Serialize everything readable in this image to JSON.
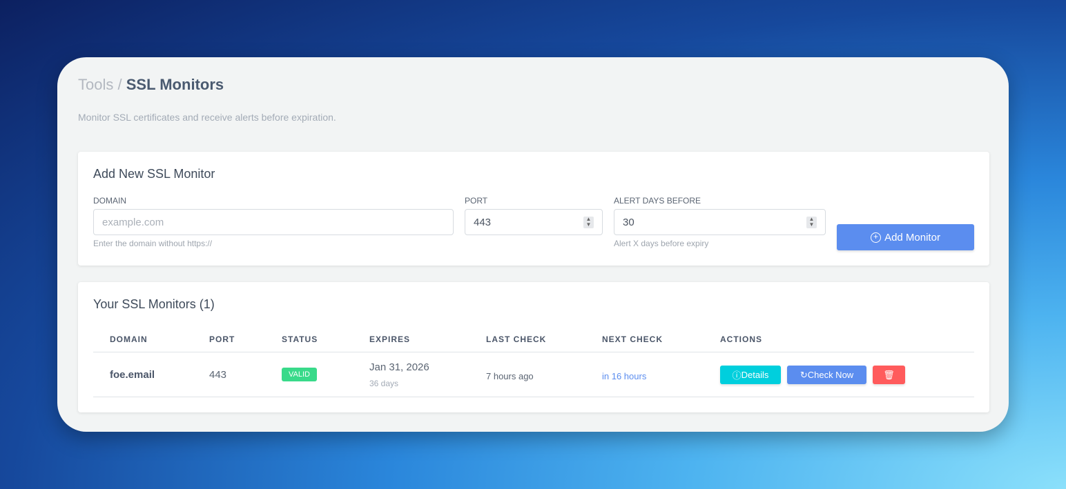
{
  "breadcrumb": {
    "parent": "Tools",
    "separator": "/",
    "current": "SSL Monitors"
  },
  "subtitle": "Monitor SSL certificates and receive alerts before expiration.",
  "add_form": {
    "title": "Add New SSL Monitor",
    "domain_label": "DOMAIN",
    "domain_placeholder": "example.com",
    "domain_hint": "Enter the domain without https://",
    "port_label": "PORT",
    "port_value": "443",
    "alert_label": "ALERT DAYS BEFORE",
    "alert_value": "30",
    "alert_hint": "Alert X days before expiry",
    "submit_label": "Add Monitor"
  },
  "monitors": {
    "title": "Your SSL Monitors (1)",
    "columns": [
      "DOMAIN",
      "PORT",
      "STATUS",
      "EXPIRES",
      "LAST CHECK",
      "NEXT CHECK",
      "ACTIONS"
    ],
    "rows": [
      {
        "domain": "foe.email",
        "port": "443",
        "status": "VALID",
        "expires": "Jan 31, 2026",
        "expires_in": "36 days",
        "last_check": "7 hours ago",
        "next_check": "in 16 hours",
        "details_label": "Details",
        "check_label": "Check Now"
      }
    ]
  },
  "colors": {
    "primary": "#5b8def",
    "info": "#00cfdd",
    "success": "#39da8a",
    "danger": "#ff5b5c"
  }
}
